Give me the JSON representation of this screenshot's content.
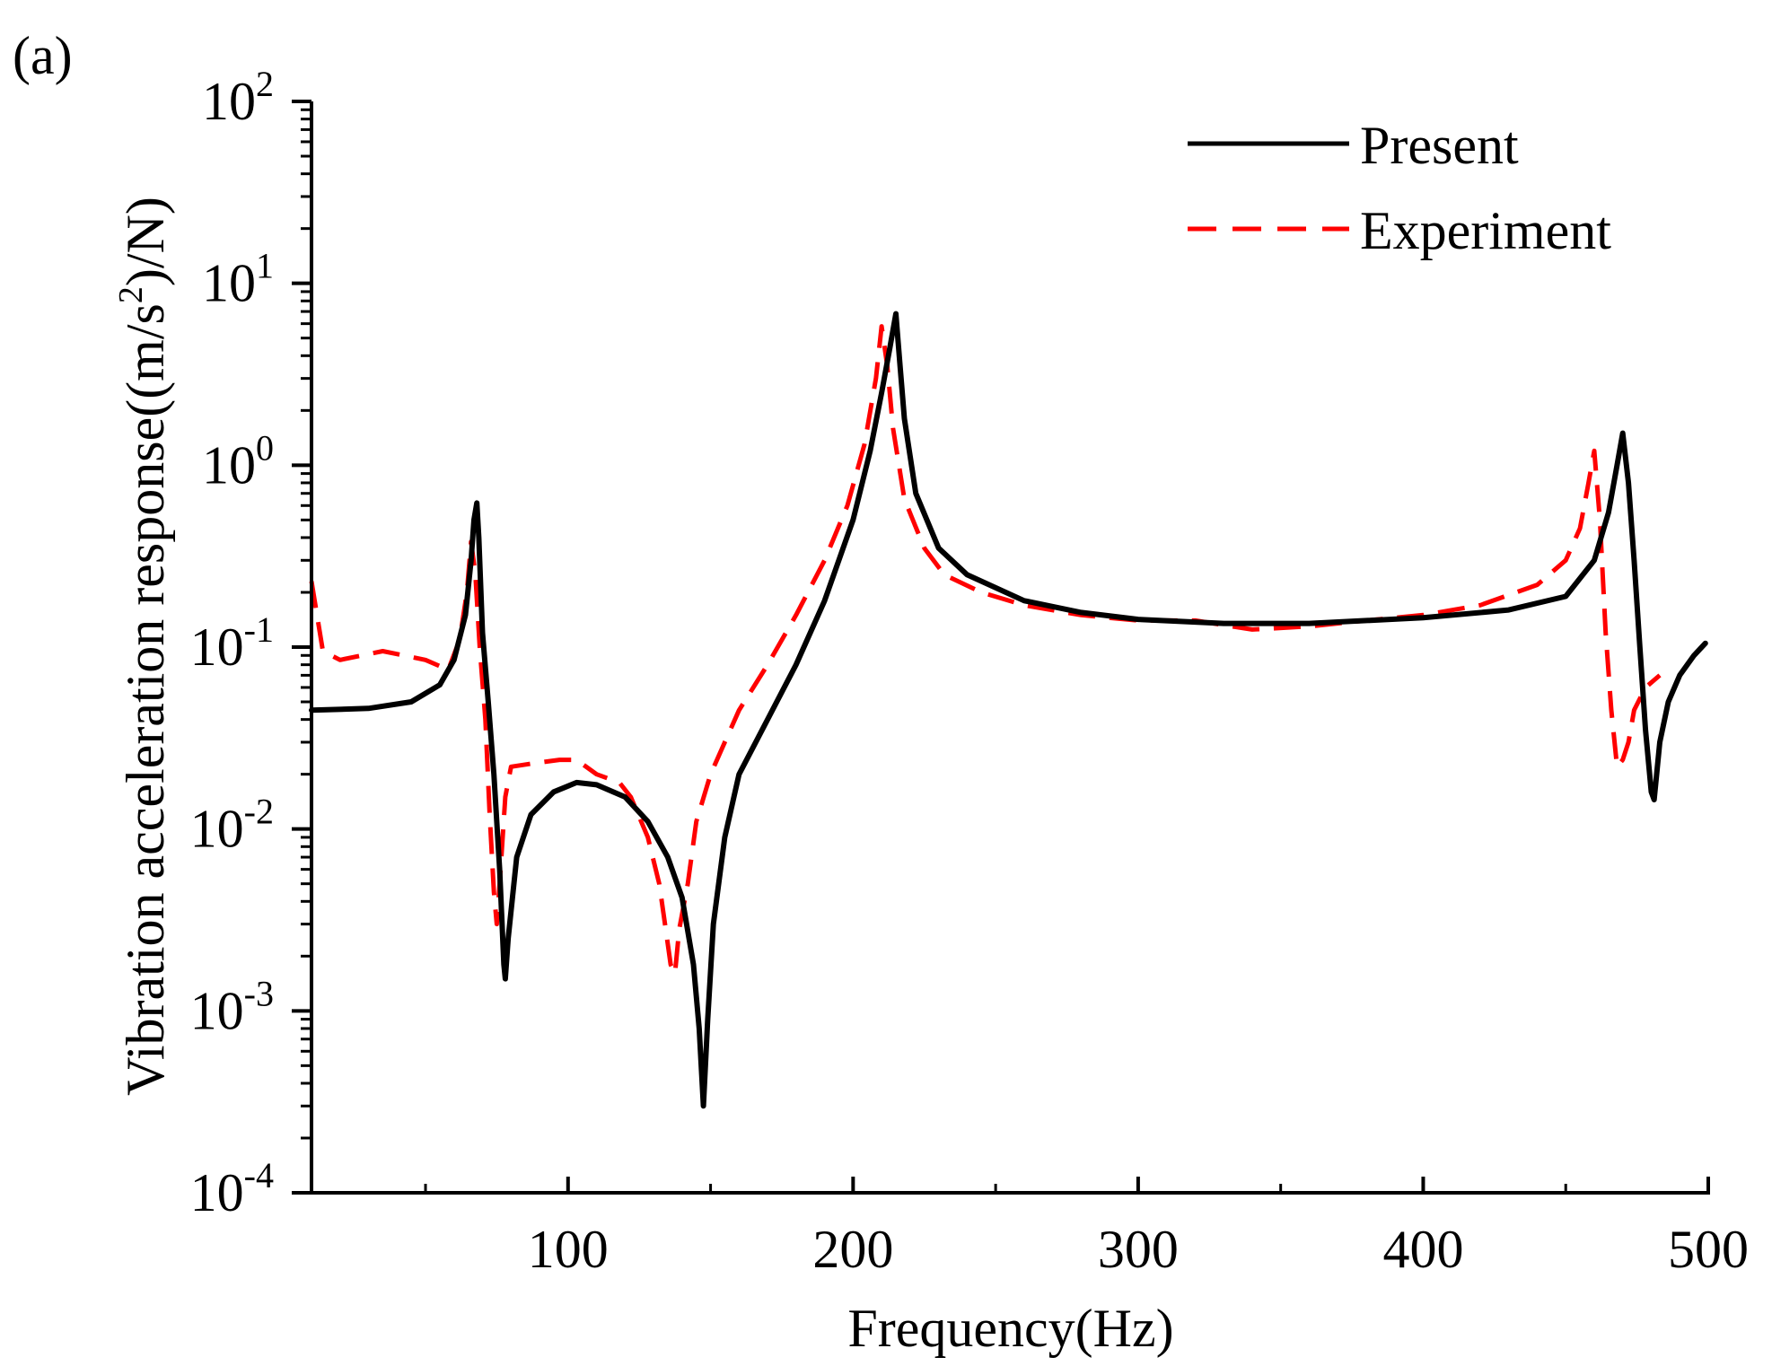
{
  "panel_label": "(a)",
  "chart_data": {
    "type": "line",
    "xlabel": "Frequency(Hz)",
    "ylabel": {
      "prefix": "Vibration acceleration response((m/s",
      "sup": "2",
      "suffix": ")/N)"
    },
    "xlim": [
      10,
      500
    ],
    "ylim_log10": [
      -4,
      2
    ],
    "y_scale": "log",
    "x_ticks": [
      100,
      200,
      300,
      400,
      500
    ],
    "y_ticks": [
      {
        "base": "10",
        "exp": "-4"
      },
      {
        "base": "10",
        "exp": "-3"
      },
      {
        "base": "10",
        "exp": "-2"
      },
      {
        "base": "10",
        "exp": "-1"
      },
      {
        "base": "10",
        "exp": "0"
      },
      {
        "base": "10",
        "exp": "1"
      },
      {
        "base": "10",
        "exp": "2"
      }
    ],
    "legend_position": "top-right",
    "series": [
      {
        "name": "Present",
        "color": "#000000",
        "style": "solid",
        "points": [
          [
            10,
            0.045
          ],
          [
            30,
            0.046
          ],
          [
            45,
            0.05
          ],
          [
            55,
            0.062
          ],
          [
            60,
            0.085
          ],
          [
            64,
            0.15
          ],
          [
            66,
            0.3
          ],
          [
            67,
            0.5
          ],
          [
            68,
            0.62
          ],
          [
            68.7,
            0.4
          ],
          [
            70,
            0.12
          ],
          [
            72,
            0.05
          ],
          [
            74,
            0.02
          ],
          [
            76,
            0.006
          ],
          [
            77.5,
            0.0018
          ],
          [
            78,
            0.0015
          ],
          [
            79,
            0.0025
          ],
          [
            82,
            0.007
          ],
          [
            87,
            0.012
          ],
          [
            95,
            0.016
          ],
          [
            103,
            0.018
          ],
          [
            110,
            0.0175
          ],
          [
            120,
            0.015
          ],
          [
            128,
            0.011
          ],
          [
            135,
            0.007
          ],
          [
            140,
            0.0042
          ],
          [
            144,
            0.0018
          ],
          [
            146,
            0.0008
          ],
          [
            147.5,
            0.0003
          ],
          [
            149,
            0.0009
          ],
          [
            151,
            0.003
          ],
          [
            155,
            0.009
          ],
          [
            160,
            0.02
          ],
          [
            170,
            0.04
          ],
          [
            180,
            0.08
          ],
          [
            190,
            0.18
          ],
          [
            200,
            0.5
          ],
          [
            206,
            1.2
          ],
          [
            210,
            2.5
          ],
          [
            213,
            4.5
          ],
          [
            215,
            6.8
          ],
          [
            216.5,
            3.5
          ],
          [
            218,
            1.8
          ],
          [
            222,
            0.7
          ],
          [
            230,
            0.35
          ],
          [
            240,
            0.25
          ],
          [
            260,
            0.18
          ],
          [
            280,
            0.155
          ],
          [
            300,
            0.142
          ],
          [
            330,
            0.135
          ],
          [
            360,
            0.135
          ],
          [
            400,
            0.145
          ],
          [
            430,
            0.16
          ],
          [
            450,
            0.19
          ],
          [
            460,
            0.3
          ],
          [
            465,
            0.55
          ],
          [
            468,
            1.0
          ],
          [
            470,
            1.5
          ],
          [
            472,
            0.8
          ],
          [
            474,
            0.3
          ],
          [
            476,
            0.1
          ],
          [
            478,
            0.035
          ],
          [
            480,
            0.016
          ],
          [
            481,
            0.0145
          ],
          [
            483,
            0.03
          ],
          [
            486,
            0.05
          ],
          [
            490,
            0.07
          ],
          [
            495,
            0.09
          ],
          [
            499,
            0.105
          ]
        ]
      },
      {
        "name": "Experiment",
        "color": "#ff0000",
        "style": "dashed",
        "points": [
          [
            10,
            0.23
          ],
          [
            14,
            0.095
          ],
          [
            20,
            0.085
          ],
          [
            35,
            0.095
          ],
          [
            50,
            0.085
          ],
          [
            58,
            0.075
          ],
          [
            62,
            0.11
          ],
          [
            64.5,
            0.2
          ],
          [
            66,
            0.38
          ],
          [
            67.5,
            0.25
          ],
          [
            69,
            0.1
          ],
          [
            71,
            0.04
          ],
          [
            72.5,
            0.012
          ],
          [
            74,
            0.0045
          ],
          [
            75,
            0.003
          ],
          [
            76,
            0.005
          ],
          [
            78,
            0.015
          ],
          [
            80,
            0.022
          ],
          [
            88,
            0.023
          ],
          [
            97,
            0.024
          ],
          [
            103,
            0.024
          ],
          [
            110,
            0.02
          ],
          [
            118,
            0.018
          ],
          [
            122,
            0.015
          ],
          [
            128,
            0.009
          ],
          [
            132,
            0.005
          ],
          [
            134,
            0.003
          ],
          [
            136,
            0.0018
          ],
          [
            137.5,
            0.0016
          ],
          [
            139,
            0.0028
          ],
          [
            142,
            0.005
          ],
          [
            145,
            0.011
          ],
          [
            150,
            0.02
          ],
          [
            155,
            0.03
          ],
          [
            160,
            0.045
          ],
          [
            170,
            0.08
          ],
          [
            180,
            0.15
          ],
          [
            190,
            0.3
          ],
          [
            198,
            0.6
          ],
          [
            204,
            1.3
          ],
          [
            208,
            3.0
          ],
          [
            210,
            5.8
          ],
          [
            212,
            3.5
          ],
          [
            214,
            1.6
          ],
          [
            218,
            0.65
          ],
          [
            225,
            0.35
          ],
          [
            232,
            0.25
          ],
          [
            245,
            0.2
          ],
          [
            260,
            0.17
          ],
          [
            280,
            0.15
          ],
          [
            300,
            0.14
          ],
          [
            320,
            0.14
          ],
          [
            340,
            0.125
          ],
          [
            360,
            0.13
          ],
          [
            380,
            0.14
          ],
          [
            400,
            0.15
          ],
          [
            420,
            0.17
          ],
          [
            440,
            0.22
          ],
          [
            450,
            0.3
          ],
          [
            455,
            0.45
          ],
          [
            458,
            0.8
          ],
          [
            460,
            1.2
          ],
          [
            462,
            0.5
          ],
          [
            464,
            0.12
          ],
          [
            466,
            0.045
          ],
          [
            468,
            0.022
          ],
          [
            470,
            0.024
          ],
          [
            472,
            0.03
          ],
          [
            474,
            0.045
          ],
          [
            478,
            0.06
          ],
          [
            483,
            0.07
          ]
        ]
      }
    ]
  }
}
